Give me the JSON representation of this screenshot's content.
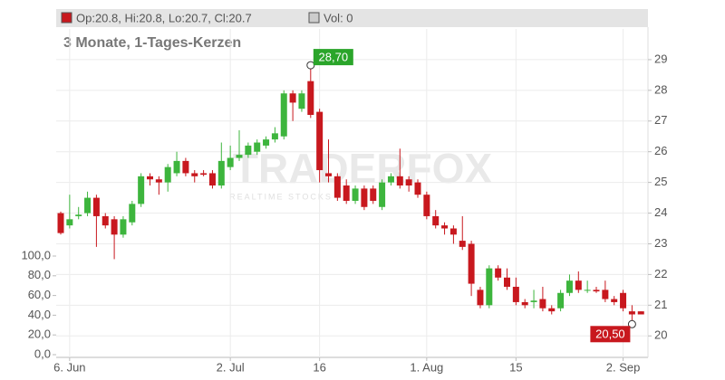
{
  "chart_data": {
    "type": "candlestick",
    "header_ohlc": "Op:20.8, Hi:20.8, Lo:20.7, Cl:20.7",
    "header_volume": "Vol: 0",
    "subtitle": "3 Monate, 1-Tages-Kerzen",
    "watermark": "TRADERFOX",
    "watermark_sub": "REALTIME STOCKS",
    "categories": [
      null,
      "6. Jun",
      null,
      null,
      null,
      null,
      null,
      null,
      null,
      null,
      null,
      null,
      null,
      null,
      null,
      null,
      null,
      null,
      null,
      "2. Jul",
      null,
      null,
      null,
      null,
      null,
      null,
      null,
      null,
      null,
      "16",
      null,
      null,
      null,
      null,
      null,
      null,
      null,
      null,
      null,
      null,
      null,
      "1. Aug",
      null,
      null,
      null,
      null,
      null,
      null,
      null,
      null,
      null,
      "15",
      null,
      null,
      null,
      null,
      null,
      null,
      null,
      null,
      null,
      null,
      null,
      "2. Sep",
      null,
      null
    ],
    "open": [
      24.0,
      23.6,
      23.9,
      24.0,
      24.5,
      23.9,
      23.8,
      23.3,
      23.7,
      24.3,
      25.2,
      25.1,
      25.0,
      25.3,
      25.7,
      25.3,
      25.3,
      25.3,
      24.9,
      25.5,
      25.8,
      25.9,
      26.0,
      26.2,
      26.4,
      26.5,
      27.9,
      27.4,
      28.3,
      27.3,
      25.3,
      25.2,
      24.9,
      24.4,
      24.8,
      24.8,
      24.2,
      25.0,
      25.2,
      25.1,
      25.0,
      24.6,
      23.9,
      23.6,
      23.5,
      23.1,
      23.0,
      21.5,
      21.0,
      22.2,
      21.9,
      21.6,
      21.1,
      21.1,
      21.2,
      20.9,
      20.9,
      21.4,
      21.8,
      21.5,
      21.5,
      21.5,
      21.2,
      21.4,
      20.8,
      20.8
    ],
    "high": [
      24.05,
      24.6,
      24.2,
      24.7,
      24.6,
      24.0,
      23.9,
      23.9,
      24.4,
      25.3,
      25.3,
      25.2,
      25.6,
      26.0,
      25.8,
      25.4,
      25.4,
      25.4,
      26.3,
      26.2,
      26.7,
      26.3,
      26.4,
      26.5,
      26.8,
      28.0,
      28.0,
      28.0,
      28.7,
      27.4,
      26.4,
      25.3,
      25.1,
      24.9,
      24.9,
      24.9,
      25.1,
      25.3,
      26.1,
      25.2,
      25.1,
      24.7,
      24.1,
      23.7,
      23.6,
      23.9,
      23.1,
      21.6,
      22.3,
      22.3,
      22.2,
      21.9,
      21.2,
      21.5,
      21.6,
      21.0,
      21.5,
      22.0,
      22.1,
      21.8,
      21.6,
      21.8,
      21.3,
      21.5,
      21.0,
      20.8
    ],
    "low": [
      23.3,
      23.5,
      23.8,
      23.9,
      22.9,
      23.5,
      22.5,
      23.2,
      23.6,
      24.2,
      24.9,
      24.6,
      24.7,
      25.2,
      25.2,
      25.0,
      25.2,
      24.8,
      24.8,
      25.4,
      25.7,
      25.8,
      25.9,
      26.1,
      26.3,
      26.4,
      27.0,
      27.3,
      27.1,
      25.0,
      25.0,
      24.4,
      24.3,
      24.3,
      24.1,
      24.3,
      24.1,
      24.9,
      24.8,
      24.7,
      24.5,
      23.8,
      23.5,
      23.3,
      23.0,
      22.8,
      21.3,
      20.9,
      20.9,
      21.8,
      21.5,
      21.0,
      20.9,
      20.9,
      20.8,
      20.7,
      20.8,
      21.3,
      21.4,
      21.4,
      21.4,
      21.1,
      21.0,
      20.8,
      20.5,
      20.7
    ],
    "close": [
      23.35,
      23.8,
      23.95,
      24.5,
      23.9,
      23.6,
      23.3,
      23.8,
      24.3,
      25.2,
      25.1,
      25.0,
      25.5,
      25.7,
      25.3,
      25.2,
      25.25,
      24.9,
      25.7,
      25.8,
      25.9,
      26.2,
      26.3,
      26.4,
      26.6,
      27.9,
      27.6,
      27.9,
      27.2,
      25.4,
      25.2,
      24.5,
      24.4,
      24.8,
      24.2,
      24.4,
      25.0,
      25.2,
      24.9,
      24.9,
      24.6,
      23.9,
      23.6,
      23.5,
      23.3,
      22.9,
      21.7,
      21.0,
      22.2,
      21.9,
      21.6,
      21.1,
      21.0,
      21.15,
      20.9,
      20.8,
      21.4,
      21.8,
      21.5,
      21.5,
      21.45,
      21.2,
      21.1,
      20.9,
      20.7,
      20.7
    ],
    "up_color": "#3db53d",
    "down_color": "#c8181e",
    "ylim": [
      19.3,
      30
    ],
    "yticks": [
      20,
      21,
      22,
      23,
      24,
      25,
      26,
      27,
      28,
      29
    ],
    "y2lim": [
      0,
      100
    ],
    "y2ticks": [
      {
        "value": 0,
        "label": "0,0"
      },
      {
        "value": 20,
        "label": "20,0"
      },
      {
        "value": 40,
        "label": "40,0"
      },
      {
        "value": 60,
        "label": "60,0"
      },
      {
        "value": 80,
        "label": "80,0"
      },
      {
        "value": 100,
        "label": "100,0"
      }
    ],
    "annotations": [
      {
        "label": "28,70",
        "value": 28.7,
        "color": "#2aa52a"
      },
      {
        "label": "20,50",
        "value": 20.5,
        "color": "#c8181e"
      }
    ],
    "grid": true
  }
}
